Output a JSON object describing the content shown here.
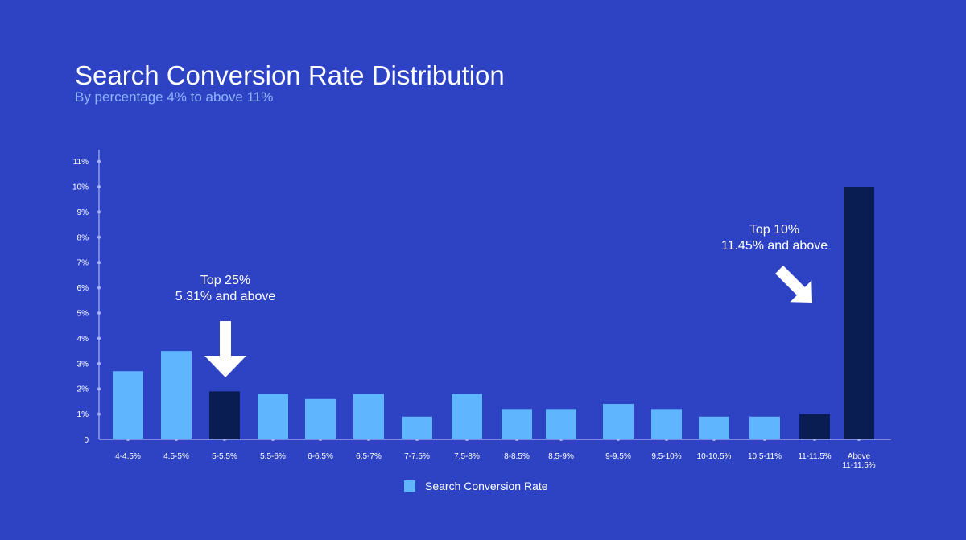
{
  "chart_data": {
    "type": "bar",
    "title": "Search Conversion Rate Distribution",
    "subtitle": "By percentage 4%  to above  11%",
    "categories": [
      [
        "4-4.5%"
      ],
      [
        "4.5-5%"
      ],
      [
        "5-5.5%"
      ],
      [
        "5.5-6%"
      ],
      [
        "6-6.5%"
      ],
      [
        "6.5-7%"
      ],
      [
        "7-7.5%"
      ],
      [
        "7.5-8%"
      ],
      [
        "8-8.5%"
      ],
      [
        "8.5-9%"
      ],
      [
        "9-9.5%"
      ],
      [
        "9.5-10%"
      ],
      [
        "10-10.5%"
      ],
      [
        "10.5-11%"
      ],
      [
        "11-11.5%"
      ],
      [
        "Above",
        "11-11.5%"
      ]
    ],
    "series": [
      {
        "name": "Search Conversion Rate",
        "values": [
          2.7,
          3.5,
          1.9,
          1.8,
          1.6,
          1.8,
          0.9,
          1.8,
          1.2,
          1.2,
          1.4,
          1.2,
          0.9,
          0.9,
          1.0,
          10.0
        ]
      }
    ],
    "highlighted": [
      2,
      14,
      15
    ],
    "yticks": [
      "0",
      "1%",
      "2%",
      "3%",
      "4%",
      "5%",
      "6%",
      "7%",
      "8%",
      "9%",
      "10%",
      "11%"
    ],
    "ylim": [
      0,
      11
    ],
    "legend_position": "bottom-center",
    "grid": false,
    "annotations": [
      {
        "lines": [
          "Top 25%",
          "5.31% and above"
        ],
        "target_category": "5-5.5%",
        "arrow": "down"
      },
      {
        "lines": [
          "Top 10%",
          "11.45% and above"
        ],
        "target_category": "Above 11-11.5%",
        "arrow": "down-right"
      }
    ]
  },
  "colors": {
    "background": "#2d43c4",
    "bar": "#5fb6ff",
    "bar_highlight": "#0a1d52",
    "axis": "#aab4ee",
    "subtitle": "#8fb3ff",
    "text": "#ffffff"
  }
}
